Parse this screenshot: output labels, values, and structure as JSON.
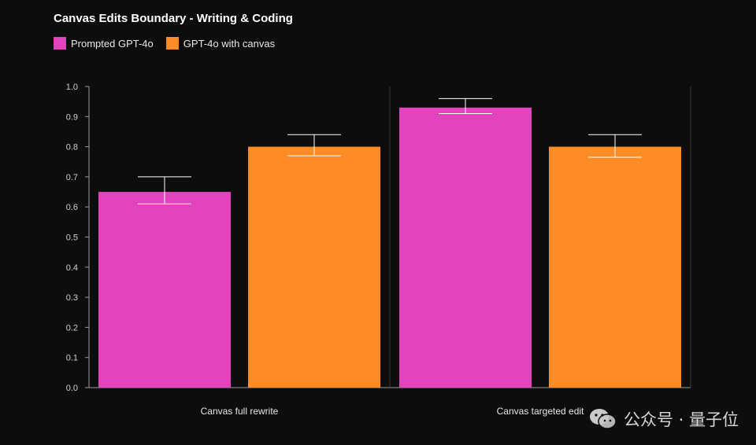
{
  "chart_data": {
    "type": "bar",
    "title": "Canvas Edits Boundary - Writing & Coding",
    "xlabel": "",
    "ylabel": "",
    "categories": [
      "Canvas full rewrite",
      "Canvas targeted edit"
    ],
    "series": [
      {
        "name": "Prompted GPT-4o",
        "color": "#e344be",
        "values": [
          0.65,
          0.93
        ],
        "error_low": [
          0.61,
          0.91
        ],
        "error_high": [
          0.7,
          0.96
        ]
      },
      {
        "name": "GPT-4o with canvas",
        "color": "#fd8c25",
        "values": [
          0.8,
          0.8
        ],
        "error_low": [
          0.77,
          0.765
        ],
        "error_high": [
          0.84,
          0.84
        ]
      }
    ],
    "ylim": [
      0,
      1.0
    ],
    "yticks": [
      0.0,
      0.1,
      0.2,
      0.3,
      0.4,
      0.5,
      0.6,
      0.7,
      0.8,
      0.9,
      1.0
    ],
    "ytick_labels": [
      "0.0",
      "0.1",
      "0.2",
      "0.3",
      "0.4",
      "0.5",
      "0.6",
      "0.7",
      "0.8",
      "0.9",
      "1.0"
    ],
    "legend_position": "top-left",
    "grid": false
  },
  "watermark": {
    "text": "公众号 · 量子位",
    "icon": "wechat-icon"
  }
}
